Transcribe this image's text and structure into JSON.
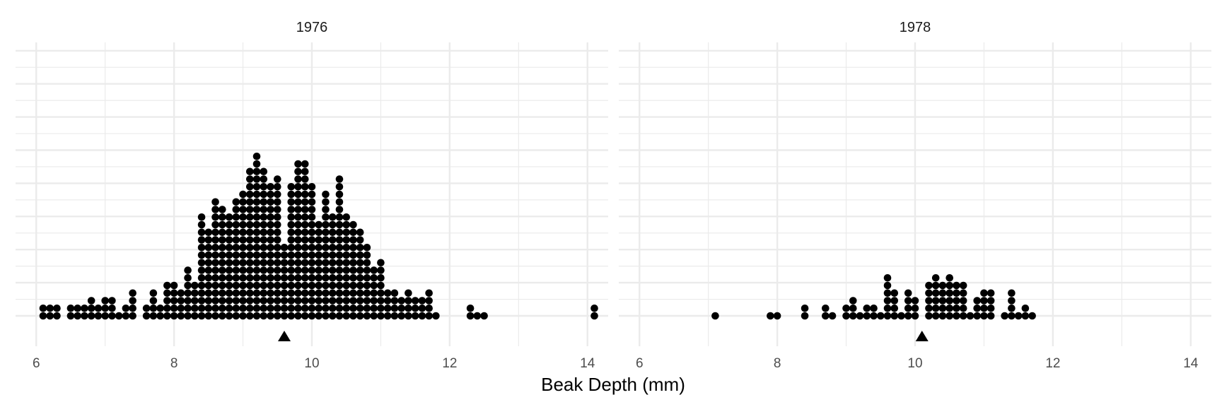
{
  "chart_data": {
    "type": "dotplot",
    "xlabel": "Beak Depth (mm)",
    "x_ticks": [
      6,
      8,
      10,
      12,
      14
    ],
    "xlim": [
      5.7,
      14.3
    ],
    "ylim": [
      -1.5,
      22.5
    ],
    "panels": [
      {
        "title": "1976",
        "mean": 9.6,
        "stacks": [
          {
            "x": 6.1,
            "n": 2
          },
          {
            "x": 6.2,
            "n": 2
          },
          {
            "x": 6.3,
            "n": 2
          },
          {
            "x": 6.5,
            "n": 2
          },
          {
            "x": 6.6,
            "n": 2
          },
          {
            "x": 6.7,
            "n": 2
          },
          {
            "x": 6.8,
            "n": 3
          },
          {
            "x": 6.9,
            "n": 2
          },
          {
            "x": 7.0,
            "n": 3
          },
          {
            "x": 7.1,
            "n": 3
          },
          {
            "x": 7.2,
            "n": 1
          },
          {
            "x": 7.3,
            "n": 2
          },
          {
            "x": 7.4,
            "n": 4
          },
          {
            "x": 7.6,
            "n": 2
          },
          {
            "x": 7.7,
            "n": 4
          },
          {
            "x": 7.8,
            "n": 2
          },
          {
            "x": 7.9,
            "n": 5
          },
          {
            "x": 8.0,
            "n": 5
          },
          {
            "x": 8.1,
            "n": 4
          },
          {
            "x": 8.2,
            "n": 7
          },
          {
            "x": 8.3,
            "n": 5
          },
          {
            "x": 8.4,
            "n": 14
          },
          {
            "x": 8.5,
            "n": 12
          },
          {
            "x": 8.6,
            "n": 16
          },
          {
            "x": 8.7,
            "n": 15
          },
          {
            "x": 8.8,
            "n": 14
          },
          {
            "x": 8.9,
            "n": 16
          },
          {
            "x": 9.0,
            "n": 17
          },
          {
            "x": 9.1,
            "n": 20
          },
          {
            "x": 9.2,
            "n": 22
          },
          {
            "x": 9.3,
            "n": 20
          },
          {
            "x": 9.4,
            "n": 18
          },
          {
            "x": 9.5,
            "n": 19
          },
          {
            "x": 9.6,
            "n": 10
          },
          {
            "x": 9.7,
            "n": 18
          },
          {
            "x": 9.8,
            "n": 21
          },
          {
            "x": 9.9,
            "n": 21
          },
          {
            "x": 10.0,
            "n": 18
          },
          {
            "x": 10.1,
            "n": 13
          },
          {
            "x": 10.2,
            "n": 17
          },
          {
            "x": 10.3,
            "n": 14
          },
          {
            "x": 10.4,
            "n": 19
          },
          {
            "x": 10.5,
            "n": 14
          },
          {
            "x": 10.6,
            "n": 13
          },
          {
            "x": 10.7,
            "n": 12
          },
          {
            "x": 10.8,
            "n": 10
          },
          {
            "x": 10.9,
            "n": 7
          },
          {
            "x": 11.0,
            "n": 8
          },
          {
            "x": 11.1,
            "n": 4
          },
          {
            "x": 11.2,
            "n": 4
          },
          {
            "x": 11.3,
            "n": 3
          },
          {
            "x": 11.4,
            "n": 4
          },
          {
            "x": 11.5,
            "n": 3
          },
          {
            "x": 11.6,
            "n": 3
          },
          {
            "x": 11.7,
            "n": 4
          },
          {
            "x": 11.8,
            "n": 1
          },
          {
            "x": 12.3,
            "n": 2
          },
          {
            "x": 12.4,
            "n": 1
          },
          {
            "x": 12.5,
            "n": 1
          },
          {
            "x": 14.1,
            "n": 2
          }
        ]
      },
      {
        "title": "1978",
        "mean": 10.1,
        "stacks": [
          {
            "x": 7.1,
            "n": 1
          },
          {
            "x": 7.9,
            "n": 1
          },
          {
            "x": 8.0,
            "n": 1
          },
          {
            "x": 8.4,
            "n": 2
          },
          {
            "x": 8.7,
            "n": 2
          },
          {
            "x": 8.8,
            "n": 1
          },
          {
            "x": 9.0,
            "n": 2
          },
          {
            "x": 9.1,
            "n": 3
          },
          {
            "x": 9.2,
            "n": 1
          },
          {
            "x": 9.3,
            "n": 2
          },
          {
            "x": 9.4,
            "n": 2
          },
          {
            "x": 9.5,
            "n": 1
          },
          {
            "x": 9.6,
            "n": 6
          },
          {
            "x": 9.7,
            "n": 4
          },
          {
            "x": 9.8,
            "n": 1
          },
          {
            "x": 9.9,
            "n": 4
          },
          {
            "x": 10.0,
            "n": 3
          },
          {
            "x": 10.2,
            "n": 5
          },
          {
            "x": 10.3,
            "n": 6
          },
          {
            "x": 10.4,
            "n": 5
          },
          {
            "x": 10.5,
            "n": 6
          },
          {
            "x": 10.6,
            "n": 5
          },
          {
            "x": 10.7,
            "n": 5
          },
          {
            "x": 10.8,
            "n": 1
          },
          {
            "x": 10.9,
            "n": 3
          },
          {
            "x": 11.0,
            "n": 4
          },
          {
            "x": 11.1,
            "n": 4
          },
          {
            "x": 11.3,
            "n": 1
          },
          {
            "x": 11.4,
            "n": 4
          },
          {
            "x": 11.5,
            "n": 1
          },
          {
            "x": 11.6,
            "n": 2
          },
          {
            "x": 11.7,
            "n": 1
          }
        ]
      }
    ]
  }
}
